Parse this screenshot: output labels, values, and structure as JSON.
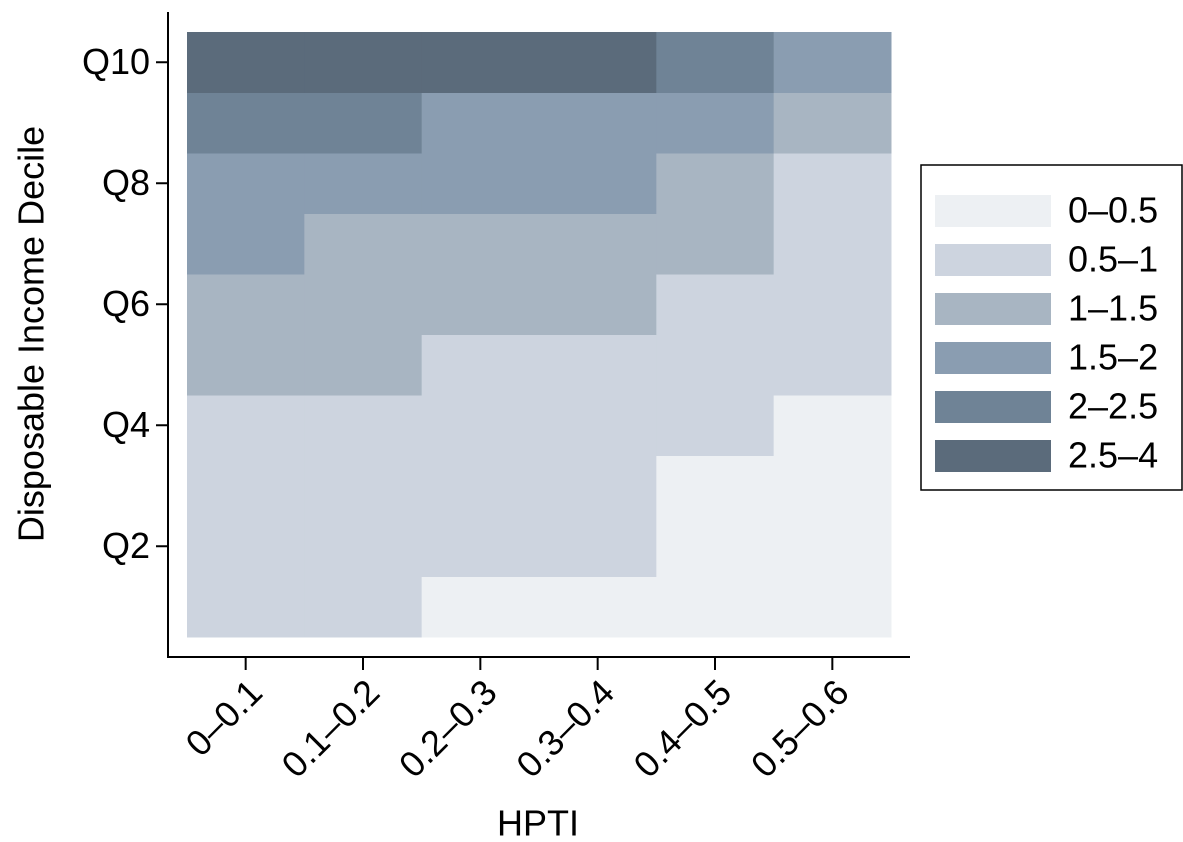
{
  "chart_data": {
    "type": "heatmap",
    "x_label": "HPTI",
    "y_label": "Disposable Income Decile",
    "categories": [
      "0–0.1",
      "0.1–0.2",
      "0.2–0.3",
      "0.3–0.4",
      "0.4–0.5",
      "0.5–0.6"
    ],
    "rows": [
      null,
      "Q2",
      null,
      "Q4",
      null,
      "Q6",
      null,
      "Q8",
      null,
      "Q10"
    ],
    "legend": {
      "position": "right",
      "labels": [
        "0–0.5",
        "0.5–1",
        "1–1.5",
        "1.5–2",
        "2–2.5",
        "2.5–4"
      ],
      "colors": [
        "#edf0f3",
        "#cdd4df",
        "#a8b5c2",
        "#8a9db1",
        "#6f8396",
        "#5b6b7b"
      ]
    },
    "classes": [
      [
        1,
        1,
        0,
        0,
        0,
        0
      ],
      [
        1,
        1,
        1,
        1,
        0,
        0
      ],
      [
        1,
        1,
        1,
        1,
        0,
        0
      ],
      [
        1,
        1,
        1,
        1,
        1,
        0
      ],
      [
        2,
        2,
        1,
        1,
        1,
        1
      ],
      [
        2,
        2,
        2,
        2,
        1,
        1
      ],
      [
        3,
        2,
        2,
        2,
        2,
        1
      ],
      [
        3,
        3,
        3,
        3,
        2,
        1
      ],
      [
        4,
        4,
        3,
        3,
        3,
        2
      ],
      [
        5,
        5,
        5,
        5,
        4,
        3
      ]
    ]
  }
}
